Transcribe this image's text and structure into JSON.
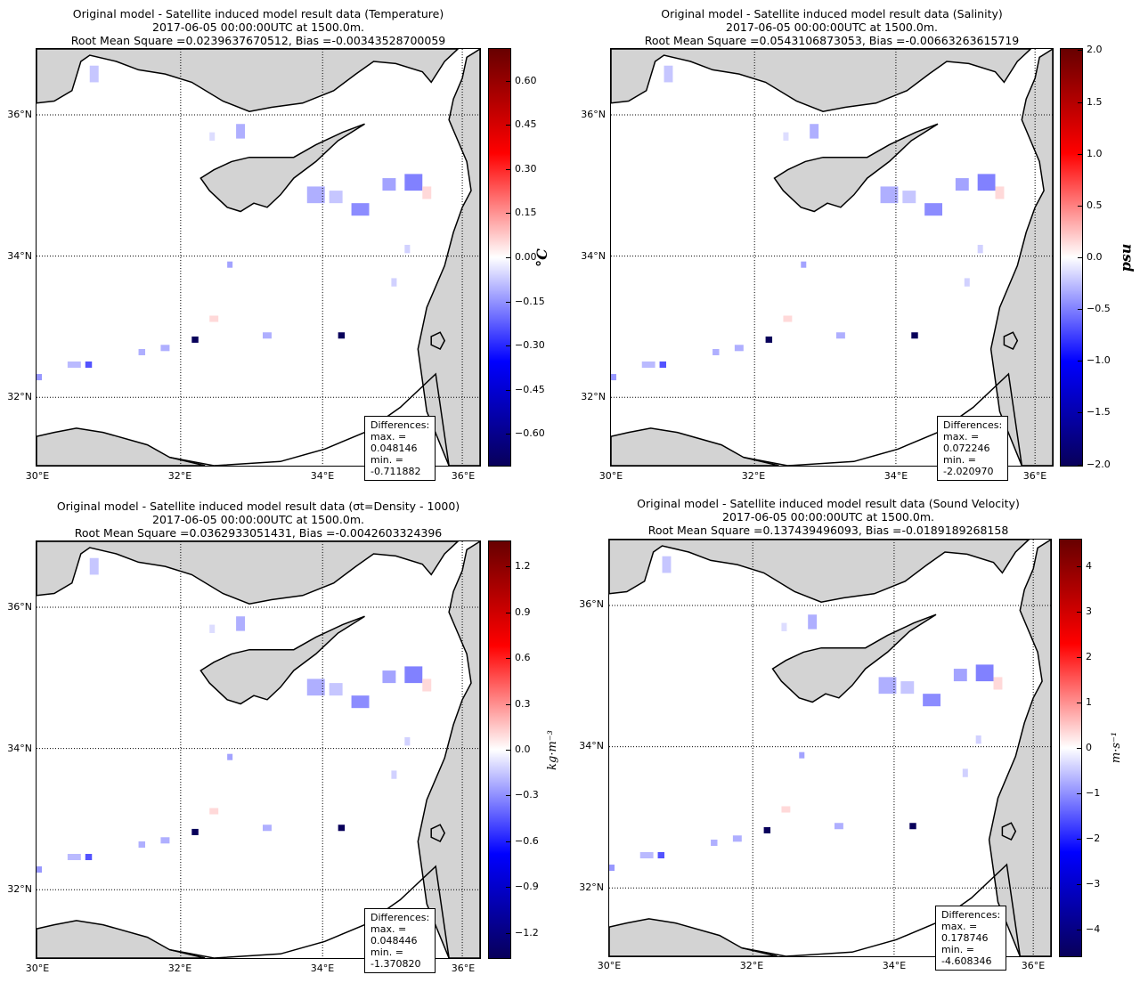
{
  "colors": {
    "land": "#d3d3d3",
    "sea": "#ffffff",
    "cmap_low": "#08005a",
    "cmap_mid": "#ffffff",
    "cmap_high": "#670000"
  },
  "common": {
    "line2": "2017-06-05 00:00:00UTC at 1500.0m.",
    "lat_labels": [
      "36°N",
      "34°N",
      "32°N"
    ],
    "lon_labels": [
      "30°E",
      "32°E",
      "34°E",
      "36°E"
    ],
    "diff_header": "Differences:"
  },
  "panels": [
    {
      "title1": "Original model - Satellite induced model result data (Temperature)",
      "title3": "Root Mean Square =0.0239637670512, Bias =-0.00343528700059",
      "diff_max": "max. = 0.048146",
      "diff_min": "min. = -0.711882",
      "unit": "°C",
      "ticks": [
        "0.60",
        "0.45",
        "0.30",
        "0.15",
        "0.00",
        "−0.15",
        "−0.30",
        "−0.45",
        "−0.60"
      ],
      "tick_values": [
        0.6,
        0.45,
        0.3,
        0.15,
        0.0,
        -0.15,
        -0.3,
        -0.45,
        -0.6
      ],
      "range": [
        -0.711882,
        0.711882
      ]
    },
    {
      "title1": "Original model - Satellite induced model result data (Salinity)",
      "title3": "Root Mean Square =0.0543106873053, Bias =-0.00663263615719",
      "diff_max": "max. = 0.072246",
      "diff_min": "min. = -2.020970",
      "unit": "psu",
      "ticks": [
        "2.0",
        "1.5",
        "1.0",
        "0.5",
        "0.0",
        "−0.5",
        "−1.0",
        "−1.5",
        "−2.0"
      ],
      "tick_values": [
        2.0,
        1.5,
        1.0,
        0.5,
        0.0,
        -0.5,
        -1.0,
        -1.5,
        -2.0
      ],
      "range": [
        -2.02097,
        2.02097
      ]
    },
    {
      "title1": "Original model - Satellite induced model result data (σt=Density - 1000)",
      "title3": "Root Mean Square =0.0362933051431, Bias =-0.0042603324396",
      "diff_max": "max. = 0.048446",
      "diff_min": "min. = -1.370820",
      "unit": "kg·m⁻³",
      "ticks": [
        "1.2",
        "0.9",
        "0.6",
        "0.3",
        "0.0",
        "−0.3",
        "−0.6",
        "−0.9",
        "−1.2"
      ],
      "tick_values": [
        1.2,
        0.9,
        0.6,
        0.3,
        0.0,
        -0.3,
        -0.6,
        -0.9,
        -1.2
      ],
      "range": [
        -1.37082,
        1.37082
      ]
    },
    {
      "title1": "Original model - Satellite induced model result data (Sound Velocity)",
      "title3": "Root Mean Square =0.137439496093, Bias =-0.0189189268158",
      "diff_max": "max. = 0.178746",
      "diff_min": "min. = -4.608346",
      "unit": "m·s⁻¹",
      "ticks": [
        "4",
        "3",
        "2",
        "1",
        "0",
        "−1",
        "−2",
        "−3",
        "−4"
      ],
      "tick_values": [
        4,
        3,
        2,
        1,
        0,
        -1,
        -2,
        -3,
        -4
      ],
      "range": [
        -4.608346,
        4.608346
      ]
    }
  ]
}
